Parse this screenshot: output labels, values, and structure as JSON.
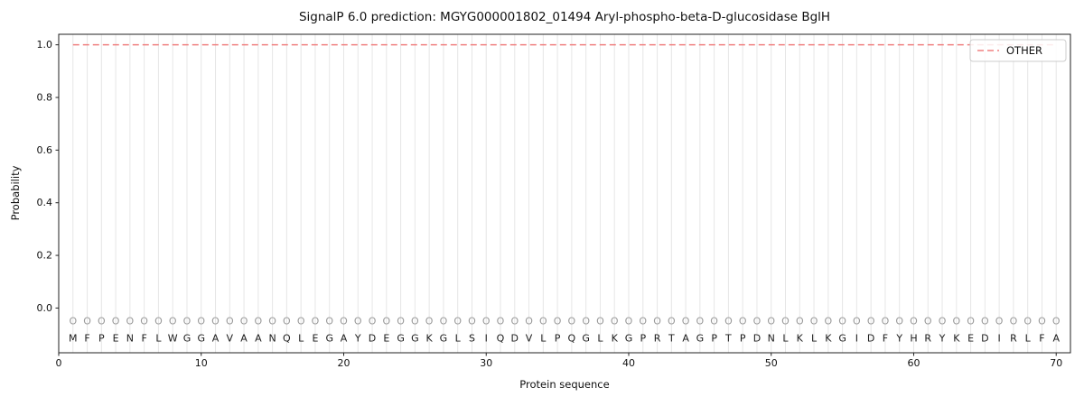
{
  "chart_data": {
    "type": "line",
    "title": "SignalP 6.0 prediction: MGYG000001802_01494 Aryl-phospho-beta-D-glucosidase BglH",
    "xlabel": "Protein sequence",
    "ylabel": "Probability",
    "xlim": [
      0,
      71
    ],
    "ylim": [
      -0.17,
      1.04
    ],
    "xticks": [
      0,
      10,
      20,
      30,
      40,
      50,
      60,
      70
    ],
    "yticks": [
      0.0,
      0.2,
      0.4,
      0.6,
      0.8,
      1.0
    ],
    "grid": "vertical line at every residue position",
    "legend_position": "upper right",
    "legend": [
      "OTHER"
    ],
    "sequence": "MFPENFLWGGAVAANQLEGAYDEGGKGLSIQDVLPQGLKGPRTAGPTPDNLKLKGIDFYHRYKEDIRLFA",
    "position_label": "O",
    "marker_y": -0.05,
    "sequence_y": -0.115,
    "series": [
      {
        "name": "OTHER",
        "color": "#f08080",
        "linestyle": "dashed",
        "x": [
          1,
          70
        ],
        "y": [
          1.0,
          1.0
        ]
      }
    ],
    "colors": {
      "grid": "#e6e6e6",
      "marker": "#999999",
      "sequence_text": "#1a1a1a",
      "spine": "#222222",
      "tick_text": "#111111",
      "legend_border": "#cccccc",
      "legend_bg": "#ffffff"
    }
  }
}
